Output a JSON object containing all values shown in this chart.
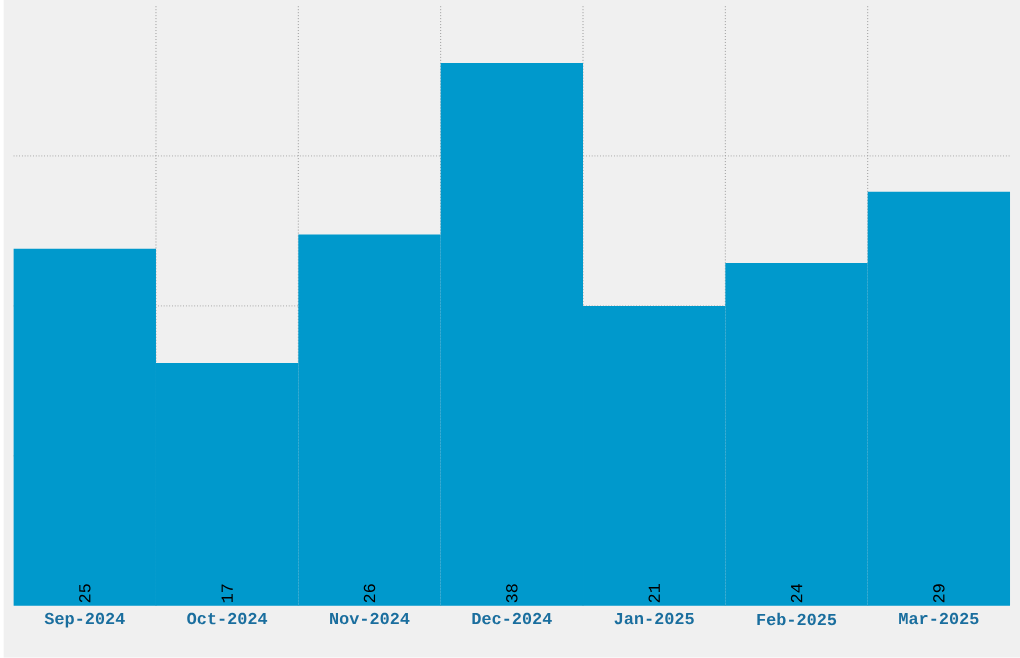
{
  "chart_data": {
    "type": "bar",
    "categories": [
      "Sep-2024",
      "Oct-2024",
      "Nov-2024",
      "Dec-2024",
      "Jan-2025",
      "Feb-2025",
      "Mar-2025"
    ],
    "values": [
      25,
      17,
      26,
      38,
      21,
      24,
      29
    ],
    "color": "#0099cc",
    "data_labels": true,
    "grid": true,
    "tick_labels": "x",
    "ylim": [
      0,
      42
    ],
    "yticks": [
      {
        "value": 10.5,
        "label": null
      },
      {
        "value": 21,
        "label": null
      },
      {
        "value": 31.5,
        "label": null
      }
    ]
  }
}
